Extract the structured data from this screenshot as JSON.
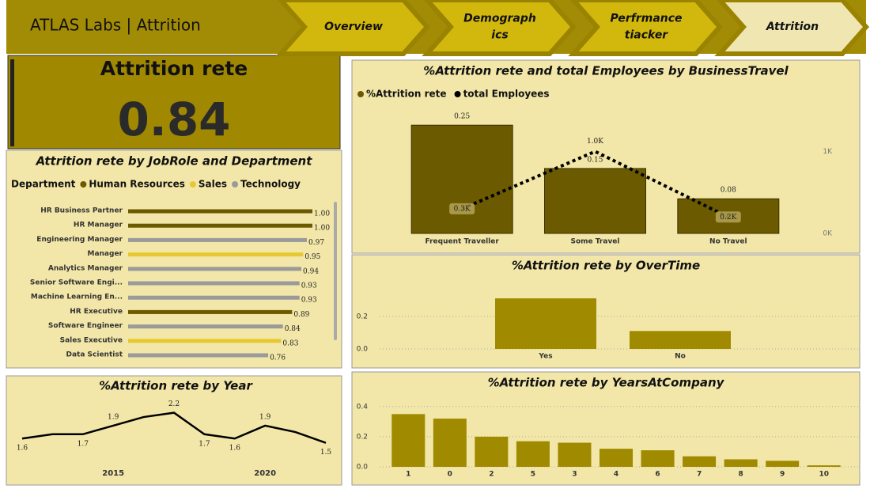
{
  "header": {
    "title": "ATLAS Labs | Attrition"
  },
  "nav": [
    [
      "Overview"
    ],
    [
      "Demograph",
      "ics"
    ],
    [
      "Perfrmance",
      "tiacker"
    ],
    [
      "Attrition"
    ]
  ],
  "kpi": {
    "title": "Attrition rete",
    "value": 0.84
  },
  "chart_data": [
    {
      "type": "bar-line",
      "title": "%Attrition rete and total Employees by BusinessTravel",
      "categories": [
        "Frequent Traveller",
        "Some Travel",
        "No Travel"
      ],
      "series": [
        {
          "name": "%Attrition rete",
          "color": "#6b5a00",
          "values": [
            0.25,
            0.15,
            0.08
          ]
        },
        {
          "name": "total Employees",
          "color": "#000000",
          "values": [
            300,
            1000,
            200
          ],
          "value_labels": [
            "0.3K",
            "1.0K",
            "0.2K"
          ],
          "axis": "y2"
        }
      ],
      "ylim": [
        0,
        0.265
      ],
      "y2lim": [
        0,
        1400
      ],
      "y2ticks": [
        {
          "value": 0,
          "label": "0K"
        },
        {
          "value": 1000,
          "label": "1K"
        }
      ],
      "legend": "top-left"
    },
    {
      "type": "hbar",
      "title": "Attrition rete by JobRole and Department",
      "legend_title": "Department",
      "categories": [
        "HR Business Partner",
        "HR Manager",
        "Engineering Manager",
        "Manager",
        "Analytics Manager",
        "Senior Software Engi...",
        "Machine Learning En...",
        "HR Executive",
        "Software Engineer",
        "Sales Executive",
        "Data Scientist"
      ],
      "series": [
        {
          "name": "Human Resources",
          "color": "#6b5a00",
          "values": [
            1,
            1,
            null,
            null,
            null,
            null,
            null,
            0.89,
            null,
            null,
            null
          ],
          "value_labels": [
            "1.00",
            "1.00",
            null,
            null,
            null,
            null,
            null,
            "0.89",
            null,
            null,
            null
          ]
        },
        {
          "name": "Sales",
          "color": "#e6c832",
          "values": [
            null,
            null,
            null,
            0.95,
            null,
            null,
            null,
            null,
            null,
            0.83,
            null
          ],
          "value_labels": [
            null,
            null,
            null,
            "0.95",
            null,
            null,
            null,
            null,
            null,
            "0.83",
            null
          ]
        },
        {
          "name": "Technology",
          "color": "#9a9a9a",
          "values": [
            null,
            null,
            0.97,
            null,
            0.94,
            0.93,
            0.93,
            null,
            0.84,
            null,
            0.76
          ],
          "value_labels": [
            null,
            null,
            "0.97",
            null,
            "0.94",
            "0.93",
            "0.93",
            null,
            "0.84",
            null,
            "0.76"
          ]
        }
      ],
      "xlim": [
        0,
        1
      ],
      "legend": "top-left"
    },
    {
      "type": "line",
      "title": "%Attrition rete by Year",
      "x": [
        2012,
        2013,
        2014,
        2015,
        2016,
        2017,
        2018,
        2019,
        2020,
        2021,
        2022
      ],
      "values": [
        1.6,
        1.7,
        1.7,
        1.9,
        2.1,
        2.2,
        1.7,
        1.6,
        1.9,
        1.75,
        1.5
      ],
      "value_labels": [
        "1.6",
        null,
        "1.7",
        "1.9",
        null,
        "2.2",
        "1.7",
        "1.6",
        "1.9",
        null,
        "1.5"
      ],
      "color": "#000000",
      "xlim": [
        2012,
        2022
      ],
      "xticks": [
        2015,
        2020
      ],
      "ylim": [
        1.2,
        2.45
      ]
    },
    {
      "type": "bar",
      "title": "%Attrition rete by OverTime",
      "categories": [
        "Yes",
        "No"
      ],
      "values": [
        0.31,
        0.11
      ],
      "color": "#a08a00",
      "ylim": [
        0,
        0.32
      ],
      "yticks": [
        {
          "value": 0,
          "label": "0.0"
        },
        {
          "value": 0.2,
          "label": "0.2"
        }
      ],
      "grid": true
    },
    {
      "type": "bar",
      "title": "%Attrition rete by YearsAtCompany",
      "categories": [
        "1",
        "0",
        "2",
        "5",
        "3",
        "4",
        "6",
        "7",
        "8",
        "9",
        "10"
      ],
      "values": [
        0.35,
        0.32,
        0.2,
        0.17,
        0.16,
        0.12,
        0.11,
        0.07,
        0.05,
        0.04,
        0.01
      ],
      "color": "#a08a00",
      "ylim": [
        0,
        0.42
      ],
      "yticks": [
        {
          "value": 0,
          "label": "0.0"
        },
        {
          "value": 0.2,
          "label": "0.2"
        },
        {
          "value": 0.4,
          "label": "0.4"
        }
      ],
      "grid": true
    }
  ]
}
